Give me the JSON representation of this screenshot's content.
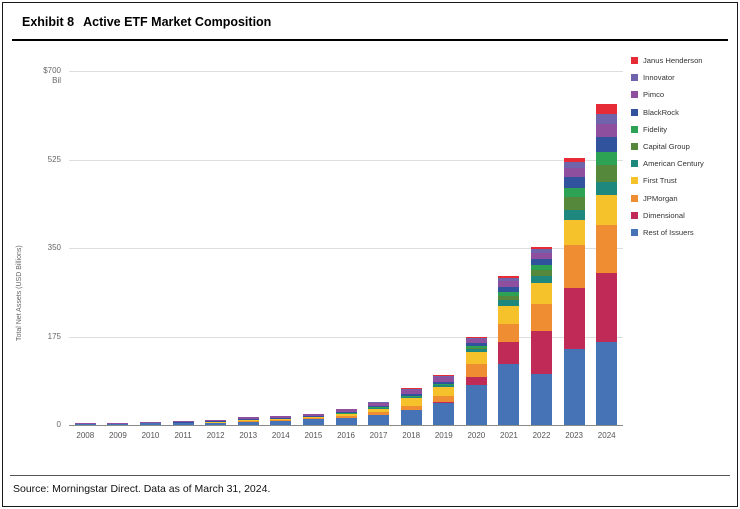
{
  "header": {
    "exhibit": "Exhibit 8",
    "title": "Active ETF Market Composition"
  },
  "footer": {
    "source": "Source: Morningstar Direct. Data as of March 31, 2024."
  },
  "chart_data": {
    "type": "bar",
    "stacked": true,
    "title": "Active ETF Market Composition",
    "ylabel": "Total Net Assets (USD Billions)",
    "ylim": [
      0,
      700
    ],
    "yticks": [
      0,
      175,
      350,
      525,
      700
    ],
    "ytick_labels": [
      "0",
      "175",
      "350",
      "525",
      "$700"
    ],
    "y_top_unit": "Bil",
    "grid": true,
    "legend_position": "top-right",
    "categories": [
      "2008",
      "2009",
      "2010",
      "2011",
      "2012",
      "2013",
      "2014",
      "2015",
      "2016",
      "2017",
      "2018",
      "2019",
      "2020",
      "2021",
      "2022",
      "2023",
      "2024"
    ],
    "series": [
      {
        "name": "Janus Henderson",
        "color": "#e62b36",
        "values": [
          0,
          0,
          0,
          0,
          0,
          0,
          0,
          0,
          0,
          0,
          1,
          1,
          1,
          3,
          4,
          8,
          20
        ]
      },
      {
        "name": "Innovator",
        "color": "#6f64ab",
        "values": [
          0,
          0,
          0,
          0,
          0,
          0,
          0,
          0,
          0,
          1,
          2,
          2,
          3,
          6,
          7,
          12,
          20
        ]
      },
      {
        "name": "Pimco",
        "color": "#8e4f9e",
        "values": [
          1,
          1,
          2,
          2,
          3,
          4,
          4,
          4,
          5,
          6,
          8,
          9,
          8,
          12,
          12,
          18,
          25
        ]
      },
      {
        "name": "BlackRock",
        "color": "#31539e",
        "values": [
          0,
          0,
          0,
          1,
          1,
          1,
          1,
          1,
          2,
          3,
          5,
          5,
          6,
          10,
          12,
          22,
          30
        ]
      },
      {
        "name": "Fidelity",
        "color": "#2ea254",
        "values": [
          0,
          0,
          0,
          0,
          0,
          0,
          0,
          0,
          1,
          1,
          2,
          2,
          4,
          8,
          10,
          18,
          25
        ]
      },
      {
        "name": "Capital Group",
        "color": "#55883b",
        "values": [
          0,
          0,
          0,
          0,
          0,
          0,
          0,
          0,
          0,
          0,
          0,
          0,
          1,
          8,
          12,
          25,
          35
        ]
      },
      {
        "name": "American Century",
        "color": "#1e877e",
        "values": [
          0,
          0,
          0,
          0,
          0,
          0,
          0,
          0,
          0,
          1,
          2,
          3,
          6,
          12,
          15,
          20,
          25
        ]
      },
      {
        "name": "First Trust",
        "color": "#f6c22c",
        "values": [
          0,
          0,
          0,
          1,
          1,
          2,
          3,
          4,
          6,
          8,
          15,
          18,
          25,
          35,
          40,
          50,
          60
        ]
      },
      {
        "name": "JPMorgan",
        "color": "#ef8d33",
        "values": [
          0,
          0,
          0,
          0,
          0,
          1,
          1,
          2,
          3,
          5,
          8,
          12,
          25,
          35,
          55,
          85,
          95
        ]
      },
      {
        "name": "Dimensional",
        "color": "#c02a57",
        "values": [
          0,
          0,
          0,
          0,
          0,
          0,
          0,
          0,
          0,
          0,
          0,
          1,
          15,
          45,
          85,
          120,
          135
        ]
      },
      {
        "name": "Rest of Issuers",
        "color": "#4673b5",
        "values": [
          2,
          3,
          3,
          4,
          5,
          7,
          9,
          11,
          14,
          20,
          30,
          45,
          80,
          120,
          100,
          150,
          165
        ]
      }
    ]
  }
}
